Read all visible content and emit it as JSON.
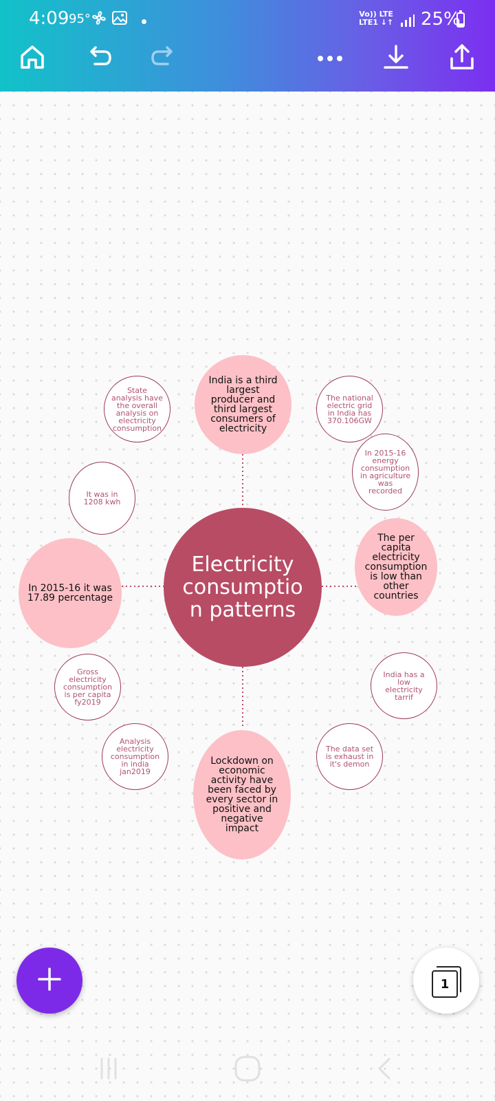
{
  "status_bar": {
    "time": "4:09",
    "temperature": "95°",
    "network_top": "Vo)) LTE",
    "network_bottom": "LTE1 ↓↑",
    "battery": "25%",
    "battery_level": 0.25
  },
  "toolbar": {
    "home_icon": "home-icon",
    "undo_icon": "undo-icon",
    "redo_icon": "redo-icon",
    "more_icon": "more-icon",
    "download_icon": "download-icon",
    "share_icon": "share-icon",
    "redo_enabled": false
  },
  "mindmap": {
    "center": [
      "Electricity",
      "consumptio",
      "n patterns"
    ],
    "top": [
      "India is a third",
      "largest",
      "producer and",
      "third largest",
      "consumers of",
      "electricity"
    ],
    "right": [
      "The per",
      "capita",
      "electricity",
      "consumption",
      "is low than",
      "other",
      "countries"
    ],
    "left": [
      "In 2015-16 it was",
      "17.89 percentage"
    ],
    "bottom": [
      "Lockdown on",
      "economic",
      "activity have",
      "been faced by",
      "every sector in",
      "positive and",
      "negative",
      "impact"
    ],
    "state_analysis": [
      "State",
      "analysis have",
      "the overall",
      "analysis on",
      "electricity",
      "consumption"
    ],
    "kwh": [
      "It was in",
      "1208 kwh"
    ],
    "national_grid": [
      "The national",
      "electric grid",
      "in India has",
      "370.106GW"
    ],
    "agriculture": [
      "In 2015-16",
      "energy",
      "consumption",
      "in agriculture",
      "was",
      "recorded"
    ],
    "gross": [
      "Gross",
      "electricity",
      "consumption",
      "is per capita",
      "fy2019"
    ],
    "analysis_jan": [
      "Analysis",
      "electricity",
      "consumption",
      "in india",
      "jan2019"
    ],
    "tariff": [
      "India has a",
      "low",
      "electricity",
      "tarrif"
    ],
    "dataset": [
      "The data set",
      "is exhaust in",
      "it's demon"
    ]
  },
  "colors": {
    "header_start": "#12c2c9",
    "header_end": "#7b2ff0",
    "center_bubble": "#b84c65",
    "pink_bubble": "#fcc0c6",
    "small_border": "#9c3a55",
    "fab": "#7d2ae8"
  },
  "pages_button": {
    "count": "1"
  },
  "fab": {
    "icon": "plus-icon"
  },
  "nav": {
    "recents_icon": "recents-icon",
    "home_icon": "nav-home-icon",
    "back_icon": "back-icon"
  }
}
